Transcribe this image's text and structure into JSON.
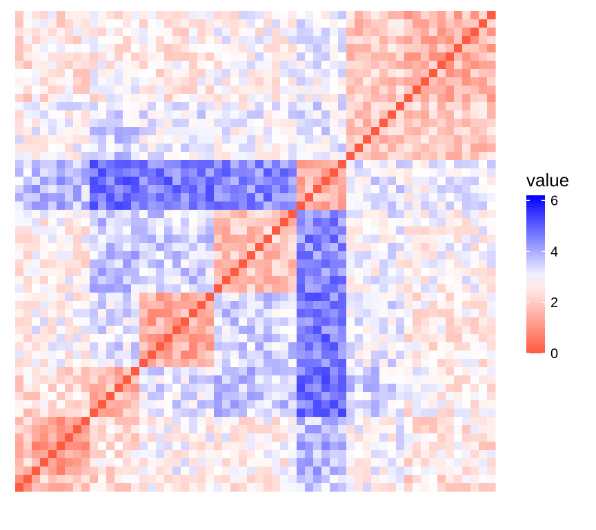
{
  "chart_data": {
    "type": "heatmap",
    "title": "",
    "xlabel": "",
    "ylabel": "",
    "n": 58,
    "diagonal_value": 0,
    "blocks": [
      2,
      9,
      15,
      24,
      34,
      40,
      47,
      58
    ],
    "color_scale": {
      "low": "#ff5a40",
      "mid": "#ffffff",
      "high": "#0000ff",
      "domain": [
        0,
        6.2
      ],
      "midpoint": 2.9
    },
    "legend": {
      "title": "value",
      "position": "right",
      "ticks": [
        {
          "value": 6,
          "label": "6"
        },
        {
          "value": 4,
          "label": "4"
        },
        {
          "value": 2,
          "label": "2"
        },
        {
          "value": 0,
          "label": "0"
        }
      ]
    }
  }
}
